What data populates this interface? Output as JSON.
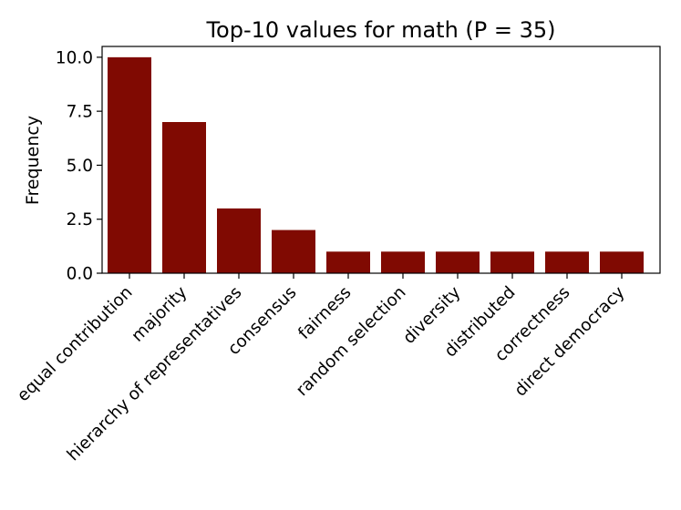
{
  "chart_data": {
    "type": "bar",
    "title": "Top-10 values for math (P = 35)",
    "xlabel": "",
    "ylabel": "Frequency",
    "categories": [
      "equal contribution",
      "majority",
      "hierarchy of representatives",
      "consensus",
      "fairness",
      "random selection",
      "diversity",
      "distributed",
      "correctness",
      "direct democracy"
    ],
    "values": [
      10,
      7,
      3,
      2,
      1,
      1,
      1,
      1,
      1,
      1
    ],
    "ylim": [
      0,
      10.5
    ],
    "yticks": [
      "0.0",
      "2.5",
      "5.0",
      "7.5",
      "10.0"
    ],
    "bar_color": "#800a02",
    "grid": false,
    "legend": "none"
  }
}
